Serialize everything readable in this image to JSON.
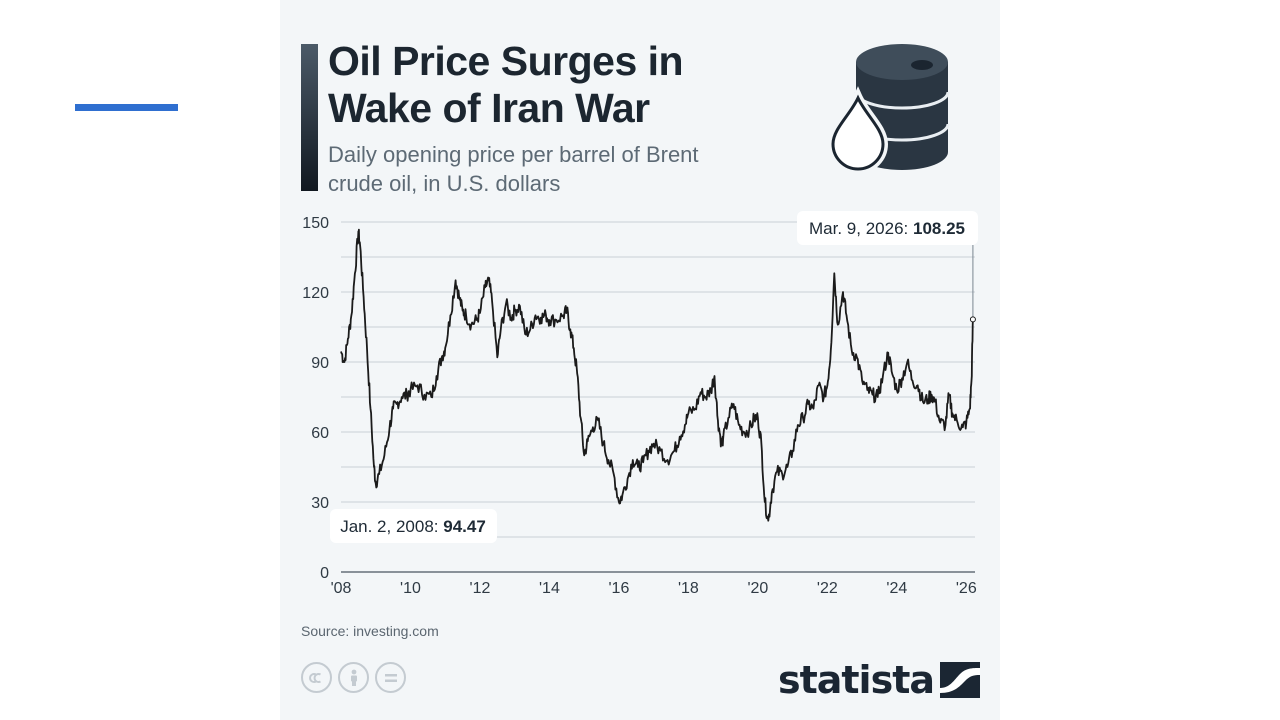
{
  "header": {
    "title": "Oil Price Surges in Wake of Iran War",
    "subtitle": "Daily opening price per barrel of Brent crude oil, in U.S. dollars"
  },
  "icons": [
    "oil-drop-icon",
    "oil-barrel-icon",
    "cc-icon",
    "attribution-icon",
    "no-derivatives-icon"
  ],
  "colors": {
    "accent": "#2f6fd0",
    "line": "#1b1b1b",
    "card": "#f3f6f8",
    "text": "#1c2630"
  },
  "chart_data": {
    "type": "line",
    "title": "Oil Price Surges in Wake of Iran War",
    "subtitle": "Daily opening price per barrel of Brent crude oil, in U.S. dollars",
    "xlabel": "",
    "ylabel": "",
    "xlim": [
      2008.0,
      2026.25
    ],
    "ylim": [
      0,
      150
    ],
    "yticks": [
      0,
      30,
      60,
      90,
      120,
      150
    ],
    "xticks": [
      {
        "label": "'08",
        "value": 2008
      },
      {
        "label": "'10",
        "value": 2010
      },
      {
        "label": "'12",
        "value": 2012
      },
      {
        "label": "'14",
        "value": 2014
      },
      {
        "label": "'16",
        "value": 2016
      },
      {
        "label": "'18",
        "value": 2018
      },
      {
        "label": "'20",
        "value": 2020
      },
      {
        "label": "'22",
        "value": 2022
      },
      {
        "label": "'24",
        "value": 2024
      },
      {
        "label": "'26",
        "value": 2026
      }
    ],
    "grid": true,
    "series": [
      {
        "points": [
          [
            2008.0,
            94.5
          ],
          [
            2008.1,
            90
          ],
          [
            2008.2,
            100
          ],
          [
            2008.3,
            110
          ],
          [
            2008.4,
            128
          ],
          [
            2008.5,
            146
          ],
          [
            2008.55,
            140
          ],
          [
            2008.65,
            118
          ],
          [
            2008.75,
            95
          ],
          [
            2008.85,
            70
          ],
          [
            2008.95,
            45
          ],
          [
            2009.0,
            38
          ],
          [
            2009.1,
            42
          ],
          [
            2009.25,
            50
          ],
          [
            2009.4,
            62
          ],
          [
            2009.5,
            70
          ],
          [
            2009.6,
            72
          ],
          [
            2009.75,
            75
          ],
          [
            2009.9,
            76
          ],
          [
            2010.0,
            78
          ],
          [
            2010.2,
            80
          ],
          [
            2010.4,
            76
          ],
          [
            2010.6,
            75
          ],
          [
            2010.75,
            84
          ],
          [
            2010.9,
            92
          ],
          [
            2011.0,
            96
          ],
          [
            2011.15,
            110
          ],
          [
            2011.3,
            125
          ],
          [
            2011.4,
            118
          ],
          [
            2011.5,
            112
          ],
          [
            2011.6,
            110
          ],
          [
            2011.75,
            106
          ],
          [
            2011.9,
            108
          ],
          [
            2012.0,
            111
          ],
          [
            2012.15,
            122
          ],
          [
            2012.25,
            125
          ],
          [
            2012.35,
            116
          ],
          [
            2012.5,
            92
          ],
          [
            2012.6,
            104
          ],
          [
            2012.75,
            115
          ],
          [
            2012.9,
            109
          ],
          [
            2013.0,
            112
          ],
          [
            2013.15,
            114
          ],
          [
            2013.3,
            102
          ],
          [
            2013.45,
            104
          ],
          [
            2013.6,
            110
          ],
          [
            2013.75,
            109
          ],
          [
            2013.9,
            110
          ],
          [
            2014.0,
            108
          ],
          [
            2014.2,
            108
          ],
          [
            2014.4,
            110
          ],
          [
            2014.5,
            112
          ],
          [
            2014.6,
            104
          ],
          [
            2014.7,
            96
          ],
          [
            2014.8,
            85
          ],
          [
            2014.9,
            66
          ],
          [
            2015.0,
            50
          ],
          [
            2015.1,
            56
          ],
          [
            2015.25,
            62
          ],
          [
            2015.4,
            65
          ],
          [
            2015.55,
            55
          ],
          [
            2015.7,
            48
          ],
          [
            2015.85,
            42
          ],
          [
            2016.0,
            30
          ],
          [
            2016.1,
            33
          ],
          [
            2016.25,
            40
          ],
          [
            2016.4,
            48
          ],
          [
            2016.55,
            45
          ],
          [
            2016.7,
            47
          ],
          [
            2016.85,
            52
          ],
          [
            2017.0,
            55
          ],
          [
            2017.2,
            52
          ],
          [
            2017.4,
            48
          ],
          [
            2017.6,
            52
          ],
          [
            2017.75,
            58
          ],
          [
            2017.9,
            63
          ],
          [
            2018.0,
            68
          ],
          [
            2018.2,
            70
          ],
          [
            2018.35,
            77
          ],
          [
            2018.5,
            75
          ],
          [
            2018.65,
            78
          ],
          [
            2018.75,
            84
          ],
          [
            2018.85,
            65
          ],
          [
            2018.95,
            55
          ],
          [
            2019.0,
            57
          ],
          [
            2019.15,
            66
          ],
          [
            2019.3,
            72
          ],
          [
            2019.45,
            63
          ],
          [
            2019.6,
            60
          ],
          [
            2019.75,
            61
          ],
          [
            2019.9,
            66
          ],
          [
            2020.0,
            66
          ],
          [
            2020.1,
            55
          ],
          [
            2020.2,
            30
          ],
          [
            2020.3,
            22
          ],
          [
            2020.4,
            34
          ],
          [
            2020.55,
            43
          ],
          [
            2020.7,
            42
          ],
          [
            2020.85,
            45
          ],
          [
            2021.0,
            52
          ],
          [
            2021.15,
            63
          ],
          [
            2021.3,
            66
          ],
          [
            2021.45,
            72
          ],
          [
            2021.6,
            70
          ],
          [
            2021.75,
            80
          ],
          [
            2021.9,
            75
          ],
          [
            2022.0,
            80
          ],
          [
            2022.1,
            95
          ],
          [
            2022.2,
            128
          ],
          [
            2022.3,
            106
          ],
          [
            2022.45,
            120
          ],
          [
            2022.55,
            110
          ],
          [
            2022.7,
            95
          ],
          [
            2022.85,
            92
          ],
          [
            2023.0,
            82
          ],
          [
            2023.15,
            78
          ],
          [
            2023.3,
            76
          ],
          [
            2023.45,
            75
          ],
          [
            2023.6,
            84
          ],
          [
            2023.75,
            94
          ],
          [
            2023.85,
            86
          ],
          [
            2024.0,
            78
          ],
          [
            2024.15,
            83
          ],
          [
            2024.3,
            90
          ],
          [
            2024.45,
            82
          ],
          [
            2024.6,
            80
          ],
          [
            2024.75,
            73
          ],
          [
            2024.9,
            74
          ],
          [
            2025.0,
            76
          ],
          [
            2025.1,
            73
          ],
          [
            2025.25,
            64
          ],
          [
            2025.4,
            63
          ],
          [
            2025.5,
            76
          ],
          [
            2025.6,
            68
          ],
          [
            2025.75,
            64
          ],
          [
            2025.9,
            62
          ],
          [
            2026.0,
            64
          ],
          [
            2026.1,
            70
          ],
          [
            2026.15,
            82
          ],
          [
            2026.19,
            108.25
          ]
        ]
      }
    ],
    "annotations": [
      {
        "prefix": "Jan. 2, 2008:",
        "value": "94.47",
        "x": 2008.0,
        "y": 94.47
      },
      {
        "prefix": "Mar. 9, 2026:",
        "value": "108.25",
        "x": 2026.19,
        "y": 108.25
      }
    ],
    "source": "Source: investing.com"
  },
  "footer": {
    "brand": "statista"
  }
}
